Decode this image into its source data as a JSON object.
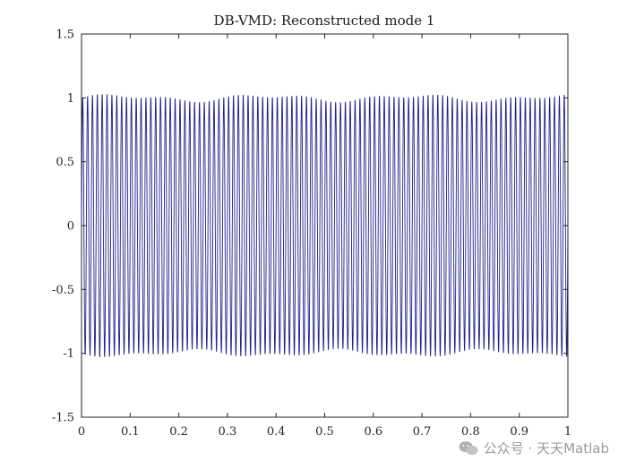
{
  "chart_data": {
    "type": "line",
    "title": "DB-VMD: Reconstructed mode 1",
    "xlabel": "",
    "ylabel": "",
    "xlim": [
      0,
      1
    ],
    "ylim": [
      -1.5,
      1.5
    ],
    "xticks": [
      "0",
      "0.1",
      "0.2",
      "0.3",
      "0.4",
      "0.5",
      "0.6",
      "0.7",
      "0.8",
      "0.9",
      "1"
    ],
    "yticks": [
      "-1.5",
      "-1",
      "-0.5",
      "0",
      "0.5",
      "1",
      "1.5"
    ],
    "grid": false,
    "series": [
      {
        "color": "#1f1f8a",
        "style": "sinusoid",
        "amplitude": 1.0,
        "frequency": 100,
        "x_start": 0,
        "x_end": 1
      }
    ]
  },
  "watermark": {
    "text": "公众号 · 天天Matlab",
    "icon": "wechat-icon"
  }
}
